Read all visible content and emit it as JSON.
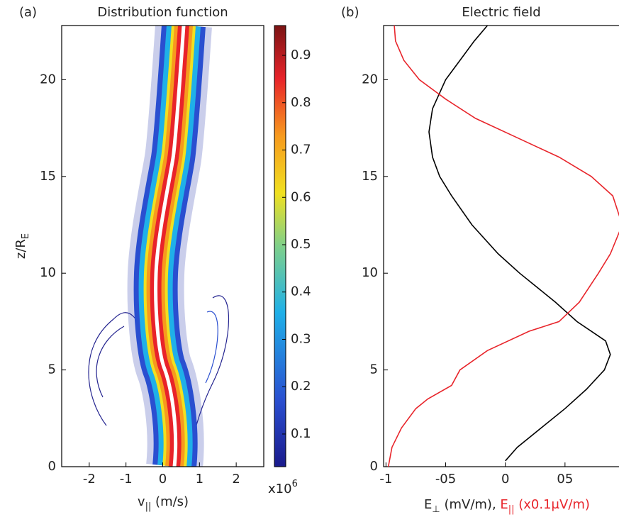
{
  "chart_data": [
    {
      "type": "contour",
      "panel_label": "(a)",
      "title": "Distribution function",
      "xlabel": {
        "main": "v",
        "sub": "||",
        "rest": " (m/s)"
      },
      "ylabel": {
        "main": "z/R",
        "sub": "E"
      },
      "x_multiplier": "x10",
      "x_multiplier_exponent": "6",
      "xlim": [
        -2.75,
        2.75
      ],
      "xticks": [
        -2,
        -1,
        0,
        1,
        2
      ],
      "ylim": [
        0,
        22.8
      ],
      "yticks": [
        0,
        5,
        10,
        15,
        20
      ],
      "colorbar": {
        "lim": [
          0.031,
          0.963
        ],
        "ticks": [
          0.1,
          0.2,
          0.3,
          0.4,
          0.5,
          0.6,
          0.7,
          0.8,
          0.9
        ]
      }
    },
    {
      "type": "line",
      "panel_label": "(b)",
      "title": "Electric field",
      "xlabel": [
        {
          "main": "E",
          "sub": "⊥",
          "rest": " (mV/m), ",
          "color": "#222"
        },
        {
          "main": "E",
          "sub": "||",
          "rest": " (x0.1μV/m)",
          "color": "#e8252b"
        }
      ],
      "xlim": [
        -1.02,
        1.0
      ],
      "xticks": [
        -1,
        {
          "value": -0.5,
          "label": "-05"
        },
        0,
        {
          "value": 0.5,
          "label": "05"
        }
      ],
      "ylim": [
        0,
        22.8
      ],
      "yticks": [
        0,
        5,
        10,
        15,
        20
      ],
      "series": [
        {
          "color": "#000000",
          "y": [
            0.3,
            1,
            2,
            3,
            4,
            5,
            5.8,
            6.5,
            7.5,
            8.5,
            10,
            11,
            12.5,
            14,
            15,
            16,
            17.3,
            18.5,
            20,
            21,
            22,
            22.8
          ],
          "values": [
            0,
            0.1,
            0.3,
            0.5,
            0.68,
            0.83,
            0.88,
            0.84,
            0.6,
            0.42,
            0.12,
            -0.06,
            -0.28,
            -0.45,
            -0.55,
            -0.61,
            -0.64,
            -0.61,
            -0.5,
            -0.38,
            -0.26,
            -0.15
          ]
        },
        {
          "color": "#e8252b",
          "y": [
            0,
            1,
            2,
            3,
            3.5,
            4.2,
            5,
            6,
            7,
            7.5,
            8.5,
            10,
            11,
            12.5,
            14,
            15,
            16,
            17,
            18,
            19,
            20,
            21,
            22,
            22.8
          ],
          "values": [
            -0.98,
            -0.95,
            -0.87,
            -0.75,
            -0.65,
            -0.45,
            -0.38,
            -0.15,
            0.2,
            0.45,
            0.62,
            0.78,
            0.88,
            0.98,
            0.9,
            0.72,
            0.45,
            0.1,
            -0.25,
            -0.5,
            -0.72,
            -0.85,
            -0.92,
            -0.93
          ]
        }
      ]
    }
  ]
}
